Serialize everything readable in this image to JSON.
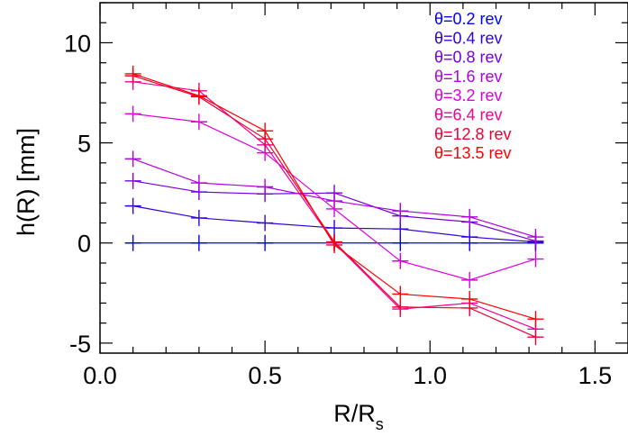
{
  "chart_data": {
    "type": "line",
    "title": "",
    "xlabel": "R/R",
    "xlabel_sub": "s",
    "ylabel": "h(R) [mm]",
    "xlim": [
      0.0,
      1.6
    ],
    "ylim": [
      -5.5,
      12
    ],
    "xticks": [
      0.0,
      0.5,
      1.0,
      1.5
    ],
    "xtick_labels": [
      "0.0",
      "0.5",
      "1.0",
      "1.5"
    ],
    "yticks": [
      -5,
      0,
      5,
      10
    ],
    "ytick_labels": [
      "-5",
      "0",
      "5",
      "10"
    ],
    "legend_position": "top-right",
    "grid": false,
    "x": [
      0.1,
      0.3,
      0.5,
      0.71,
      0.91,
      1.12,
      1.32
    ],
    "series": [
      {
        "name": "θ=0.2 rev",
        "color": "#0000ff",
        "values": [
          0.0,
          0.0,
          0.0,
          0.0,
          0.0,
          0.0,
          0.0
        ]
      },
      {
        "name": "θ=0.4 rev",
        "color": "#3000e0",
        "values": [
          1.85,
          1.25,
          1.0,
          0.75,
          0.7,
          0.3,
          0.05
        ]
      },
      {
        "name": "θ=0.8 rev",
        "color": "#7700dd",
        "values": [
          3.1,
          2.55,
          2.45,
          2.5,
          1.35,
          1.05,
          0.1
        ]
      },
      {
        "name": "θ=1.6 rev",
        "color": "#b000e0",
        "values": [
          4.2,
          3.0,
          2.8,
          2.1,
          1.6,
          1.3,
          0.3
        ]
      },
      {
        "name": "θ=3.2 rev",
        "color": "#dd00dd",
        "values": [
          6.45,
          6.05,
          4.5,
          1.7,
          -0.9,
          -1.85,
          -0.8
        ]
      },
      {
        "name": "θ=6.4 rev",
        "color": "#ee0099",
        "values": [
          8.05,
          7.6,
          4.9,
          0.0,
          -3.3,
          -3.0,
          -4.3
        ]
      },
      {
        "name": "θ=12.8 rev",
        "color": "#ee0033",
        "values": [
          8.35,
          7.3,
          5.2,
          0.05,
          -3.2,
          -3.25,
          -4.7
        ]
      },
      {
        "name": "θ=13.5 rev",
        "color": "#ff0000",
        "values": [
          8.45,
          7.35,
          5.6,
          -0.1,
          -2.55,
          -2.8,
          -3.8
        ]
      }
    ]
  }
}
